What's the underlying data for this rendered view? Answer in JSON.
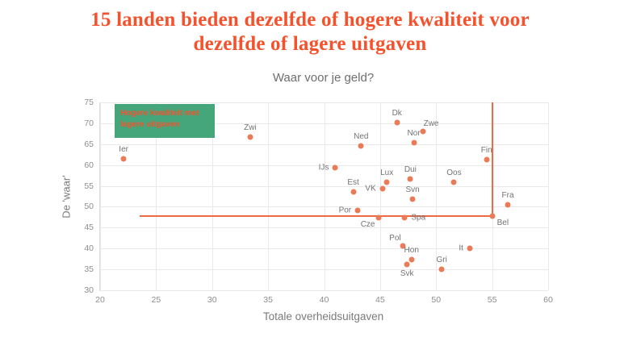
{
  "title": {
    "line1": "15 landen bieden dezelfde of hogere kwaliteit voor",
    "line2": "dezelfde of lagere uitgaven",
    "color": "#f4512c"
  },
  "chart_data": {
    "type": "scatter",
    "title": "Waar voor je geld?",
    "xlabel": "Totale overheidsuitgaven",
    "ylabel": "De 'waar'",
    "xlim": [
      20,
      60
    ],
    "ylim": [
      30,
      75
    ],
    "x_ticks": [
      20,
      25,
      30,
      35,
      40,
      45,
      50,
      55,
      60
    ],
    "y_ticks": [
      30,
      35,
      40,
      45,
      50,
      55,
      60,
      65,
      70,
      75
    ],
    "grid": true,
    "legend": "none",
    "dot_color": "#ea7b57",
    "label_color": "#737373",
    "annotation": {
      "text_line1": "Hogere kwaliteit met",
      "text_line2": "lagere uitgaven",
      "bg": "#45a67b",
      "text_color": "#f4512c",
      "x": 21.3,
      "y": 74.7,
      "x2": 30.2,
      "y2": 66.5
    },
    "reference": {
      "x": 55,
      "y": 47.7,
      "h_x_start": 23.5,
      "color": "#ed6a43"
    },
    "points": [
      {
        "label": "Ier",
        "x": 22.1,
        "y": 61.5,
        "pos": "above"
      },
      {
        "label": "Zwi",
        "x": 33.4,
        "y": 66.6,
        "pos": "above"
      },
      {
        "label": "IJs",
        "x": 41.0,
        "y": 59.4,
        "pos": "left"
      },
      {
        "label": "Est",
        "x": 42.6,
        "y": 53.5,
        "pos": "above"
      },
      {
        "label": "Ned",
        "x": 43.3,
        "y": 64.5,
        "pos": "above"
      },
      {
        "label": "Por",
        "x": 43.0,
        "y": 49.2,
        "pos": "left"
      },
      {
        "label": "Cze",
        "x": 44.9,
        "y": 47.4,
        "pos": "below-left"
      },
      {
        "label": "VK",
        "x": 45.2,
        "y": 54.4,
        "pos": "left"
      },
      {
        "label": "Lux",
        "x": 45.6,
        "y": 55.9,
        "pos": "above"
      },
      {
        "label": "Dk",
        "x": 46.5,
        "y": 70.2,
        "pos": "above"
      },
      {
        "label": "Dui",
        "x": 47.7,
        "y": 56.6,
        "pos": "above"
      },
      {
        "label": "Nor",
        "x": 48.0,
        "y": 65.4,
        "pos": "above"
      },
      {
        "label": "Zwe",
        "x": 48.8,
        "y": 68.0,
        "pos": "above-right"
      },
      {
        "label": "Svn",
        "x": 47.9,
        "y": 51.9,
        "pos": "above"
      },
      {
        "label": "Spa",
        "x": 47.2,
        "y": 47.4,
        "pos": "right"
      },
      {
        "label": "Pol",
        "x": 47.0,
        "y": 40.6,
        "pos": "above-left"
      },
      {
        "label": "Hon",
        "x": 47.8,
        "y": 37.4,
        "pos": "above"
      },
      {
        "label": "Svk",
        "x": 47.4,
        "y": 36.2,
        "pos": "below"
      },
      {
        "label": "Gri",
        "x": 50.5,
        "y": 35.0,
        "pos": "above"
      },
      {
        "label": "It",
        "x": 53.0,
        "y": 40.1,
        "pos": "left"
      },
      {
        "label": "Oos",
        "x": 51.6,
        "y": 55.8,
        "pos": "above"
      },
      {
        "label": "Fin",
        "x": 54.5,
        "y": 61.3,
        "pos": "above"
      },
      {
        "label": "Fra",
        "x": 56.4,
        "y": 50.4,
        "pos": "above"
      },
      {
        "label": "Bel",
        "x": 55.0,
        "y": 47.7,
        "pos": "below-right"
      }
    ]
  }
}
